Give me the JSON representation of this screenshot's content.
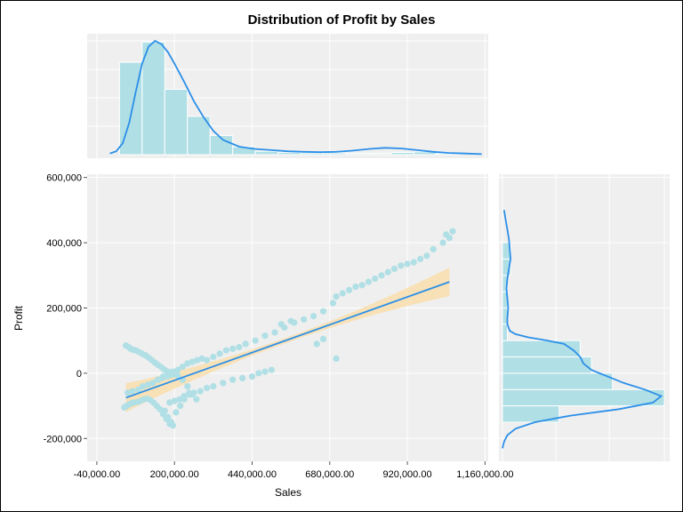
{
  "chart_data": {
    "type": "scatter",
    "title": "Distribution of Profit by Sales",
    "xlabel": "Sales",
    "ylabel": "Profit",
    "xlim": [
      -70000,
      1170000
    ],
    "ylim": [
      -270000,
      610000
    ],
    "x_ticks": [
      -40000,
      200000,
      440000,
      680000,
      920000,
      1160000
    ],
    "x_tick_labels": [
      "-40,000.00",
      "200,000.00",
      "440,000.00",
      "680,000.00",
      "920,000.00",
      "1,160,000.00"
    ],
    "y_ticks": [
      -200000,
      0,
      200000,
      400000,
      600000
    ],
    "y_tick_labels": [
      "-200,000",
      "0",
      "200,000",
      "400,000",
      "600,000"
    ],
    "grid": true,
    "legend": "none",
    "colors": {
      "points": "#b0dfe5",
      "regression_line": "#2b8fe8",
      "confidence_band": "#f8dfb0",
      "hist_bars": "#b0dfe5",
      "kde_line": "#2b8fe8",
      "panel_background": "#efefef",
      "grid": "#ffffff"
    },
    "regression": {
      "x": [
        50000,
        1050000
      ],
      "y": [
        -75000,
        280000
      ]
    },
    "scatter": {
      "x": [
        50000,
        58000,
        65000,
        72000,
        80000,
        90000,
        100000,
        110000,
        120000,
        130000,
        140000,
        150000,
        160000,
        170000,
        180000,
        190000,
        45000,
        52000,
        60000,
        68000,
        75000,
        85000,
        95000,
        105000,
        115000,
        125000,
        135000,
        145000,
        155000,
        165000,
        175000,
        185000,
        195000,
        55000,
        70000,
        88000,
        102000,
        118000,
        133000,
        148000,
        162000,
        178000,
        192000,
        210000,
        225000,
        240000,
        255000,
        268000,
        150000,
        165000,
        180000,
        195000,
        210000,
        225000,
        240000,
        255000,
        270000,
        285000,
        300000,
        320000,
        340000,
        360000,
        380000,
        400000,
        420000,
        450000,
        480000,
        510000,
        540000,
        570000,
        600000,
        630000,
        660000,
        690000,
        185000,
        200000,
        215000,
        230000,
        245000,
        260000,
        280000,
        300000,
        320000,
        350000,
        380000,
        410000,
        440000,
        460000,
        480000,
        500000,
        170000,
        180000,
        190000,
        205000,
        218000,
        230000,
        245000,
        700000,
        720000,
        740000,
        760000,
        780000,
        800000,
        820000,
        840000,
        860000,
        880000,
        900000,
        920000,
        940000,
        960000,
        980000,
        1000000,
        1030000,
        1050000,
        1060000,
        1040000,
        640000,
        660000,
        700000,
        530000,
        560000
      ],
      "y": [
        85000,
        80000,
        75000,
        72000,
        70000,
        65000,
        60000,
        55000,
        48000,
        40000,
        32000,
        25000,
        18000,
        10000,
        5000,
        0,
        -105000,
        -100000,
        -95000,
        -92000,
        -90000,
        -88000,
        -85000,
        -80000,
        -78000,
        -82000,
        -90000,
        -100000,
        -110000,
        -125000,
        -140000,
        -155000,
        -160000,
        -60000,
        -55000,
        -50000,
        -40000,
        -35000,
        -30000,
        -20000,
        -15000,
        -10000,
        -5000,
        -8000,
        -20000,
        -40000,
        -65000,
        -80000,
        -20000,
        -10000,
        0,
        5000,
        10000,
        20000,
        30000,
        35000,
        40000,
        45000,
        40000,
        50000,
        60000,
        70000,
        75000,
        80000,
        90000,
        100000,
        115000,
        125000,
        140000,
        155000,
        165000,
        175000,
        190000,
        215000,
        -90000,
        -85000,
        -80000,
        -70000,
        -65000,
        -60000,
        -55000,
        -45000,
        -40000,
        -30000,
        -20000,
        -15000,
        -10000,
        0,
        5000,
        10000,
        -115000,
        -135000,
        -150000,
        -120000,
        -100000,
        -80000,
        -60000,
        235000,
        245000,
        255000,
        265000,
        270000,
        280000,
        290000,
        300000,
        310000,
        320000,
        330000,
        335000,
        340000,
        350000,
        360000,
        380000,
        400000,
        415000,
        435000,
        425000,
        90000,
        105000,
        45000,
        150000,
        160000
      ]
    },
    "x_histogram": {
      "bin_edges": [
        30000,
        100000,
        170000,
        240000,
        310000,
        380000,
        450000,
        520000,
        590000,
        660000,
        730000,
        800000,
        870000,
        940000,
        1010000,
        1080000
      ],
      "densities": [
        0.82,
        1.0,
        0.58,
        0.34,
        0.17,
        0.07,
        0.03,
        0.02,
        0.015,
        0.015,
        0.01,
        0.01,
        0.02,
        0.025,
        0.01
      ]
    },
    "x_density": {
      "x": [
        0,
        20000,
        40000,
        60000,
        80000,
        100000,
        120000,
        140000,
        160000,
        180000,
        200000,
        230000,
        260000,
        290000,
        320000,
        350000,
        400000,
        450000,
        500000,
        550000,
        600000,
        650000,
        700000,
        750000,
        800000,
        850000,
        900000,
        950000,
        1000000,
        1050000,
        1100000,
        1150000
      ],
      "y": [
        0.01,
        0.03,
        0.1,
        0.28,
        0.55,
        0.8,
        0.95,
        1.0,
        0.97,
        0.9,
        0.8,
        0.64,
        0.47,
        0.33,
        0.21,
        0.13,
        0.07,
        0.05,
        0.04,
        0.03,
        0.025,
        0.022,
        0.025,
        0.035,
        0.05,
        0.06,
        0.055,
        0.04,
        0.025,
        0.015,
        0.01,
        0.005
      ]
    },
    "y_histogram": {
      "bin_edges": [
        -150000,
        -100000,
        -50000,
        0,
        50000,
        100000,
        150000,
        200000,
        250000,
        300000,
        350000,
        400000
      ],
      "densities": [
        0.35,
        1.0,
        0.68,
        0.55,
        0.48,
        0.03,
        0.03,
        0.03,
        0.03,
        0.05,
        0.05
      ]
    },
    "y_density": {
      "y": [
        -230000,
        -210000,
        -190000,
        -170000,
        -150000,
        -130000,
        -110000,
        -90000,
        -70000,
        -50000,
        -30000,
        -10000,
        10000,
        30000,
        50000,
        70000,
        90000,
        100000,
        110000,
        120000,
        130000,
        150000,
        170000,
        200000,
        230000,
        260000,
        290000,
        320000,
        350000,
        380000,
        410000,
        440000,
        470000,
        500000
      ],
      "x": [
        0.0,
        0.01,
        0.03,
        0.08,
        0.2,
        0.42,
        0.72,
        0.93,
        0.98,
        0.88,
        0.75,
        0.65,
        0.55,
        0.5,
        0.48,
        0.44,
        0.38,
        0.28,
        0.16,
        0.08,
        0.045,
        0.03,
        0.03,
        0.035,
        0.03,
        0.025,
        0.03,
        0.04,
        0.05,
        0.045,
        0.04,
        0.03,
        0.02,
        0.01
      ]
    }
  }
}
